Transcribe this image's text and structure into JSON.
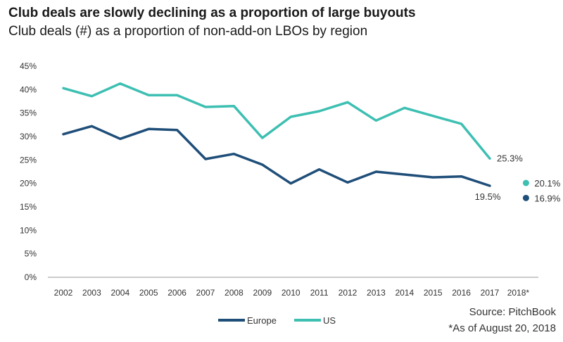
{
  "title": "Club deals are slowly declining as a proportion of large buyouts",
  "subtitle": "Club deals (#) as a proportion of non-add-on LBOs by region",
  "source": "Source: PitchBook",
  "note": "*As of August 20, 2018",
  "colors": {
    "europe": "#1f4e79",
    "us": "#3dbfb2",
    "axis": "#999999"
  },
  "chart_data": {
    "type": "line",
    "categories": [
      "2002",
      "2003",
      "2004",
      "2005",
      "2006",
      "2007",
      "2008",
      "2009",
      "2010",
      "2011",
      "2012",
      "2013",
      "2014",
      "2015",
      "2016",
      "2017",
      "2018*"
    ],
    "y_ticks": [
      "0%",
      "5%",
      "10%",
      "15%",
      "20%",
      "25%",
      "30%",
      "35%",
      "40%",
      "45%"
    ],
    "ylim": [
      0,
      45
    ],
    "series": [
      {
        "name": "Europe",
        "values": [
          30.5,
          32.2,
          29.5,
          31.6,
          31.4,
          25.2,
          26.3,
          24.0,
          20.0,
          23.0,
          20.2,
          22.5,
          21.9,
          21.3,
          21.5,
          19.5,
          null
        ]
      },
      {
        "name": "US",
        "values": [
          40.3,
          38.6,
          41.3,
          38.8,
          38.8,
          36.3,
          36.5,
          29.7,
          34.2,
          35.4,
          37.3,
          33.4,
          36.1,
          34.4,
          32.7,
          25.3,
          null
        ]
      }
    ],
    "labels": [
      {
        "series": "US",
        "category": "2017",
        "text": "25.3%"
      },
      {
        "series": "Europe",
        "category": "2017",
        "text": "19.5%"
      }
    ],
    "points_2018": [
      {
        "series": "US",
        "value": 20.1,
        "text": "20.1%"
      },
      {
        "series": "Europe",
        "value": 16.9,
        "text": "16.9%"
      }
    ],
    "legend": {
      "position": "bottom-center",
      "items": [
        "Europe",
        "US"
      ]
    },
    "grid": false
  }
}
